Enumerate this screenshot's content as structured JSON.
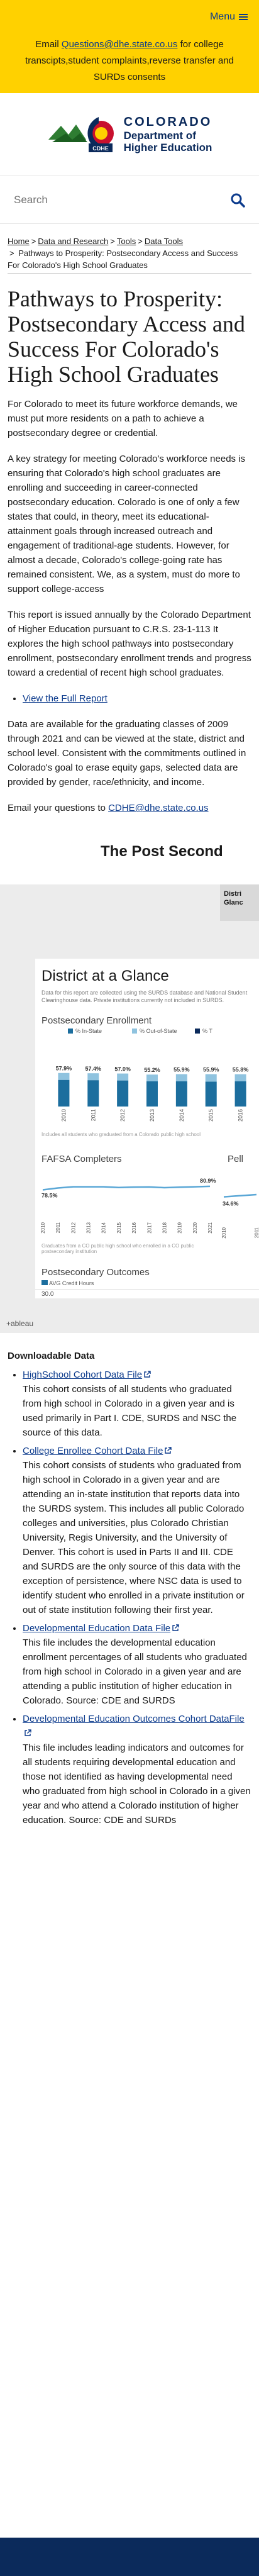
{
  "header": {
    "menu_label": "Menu",
    "banner_prefix": "Email ",
    "banner_email": "Questions@dhe.state.co.us",
    "banner_suffix": " for college transcipts,student complaints,reverse transfer and SURDs consents"
  },
  "logo": {
    "state": "COLORADO",
    "department": "Department of",
    "department2": "Higher Education",
    "badge": "CDHE"
  },
  "search": {
    "placeholder": "Search"
  },
  "breadcrumb": {
    "items": [
      "Home",
      "Data and Research",
      "Tools",
      "Data Tools"
    ],
    "current": "Pathways to Prosperity: Postsecondary Access and Success For Colorado's High School Graduates"
  },
  "main": {
    "title": "Pathways to Prosperity: Postsecondary Access and Success For Colorado's High School Graduates",
    "p1": "For Colorado to meet its future workforce demands, we must put more residents on a path to achieve a postsecondary degree or credential.",
    "p2": "A key strategy for meeting Colorado's workforce needs is ensuring that Colorado's high school graduates are enrolling and succeeding in career-connected postsecondary education. Colorado is one of only a few states that could, in theory, meet its educational-attainment goals through increased outreach and engagement of traditional-age students. However, for almost a decade, Colorado's college-going rate has remained consistent. We, as a system, must do more to support college-access",
    "p3": "This report is issued annually by the Colorado Department of Higher Education pursuant to C.R.S. 23-1-113 It explores the high school pathways into postsecondary enrollment, postsecondary enrollment trends and progress toward a credential of recent high school graduates.",
    "full_report_link": "View the Full Report",
    "p4": "Data are available for the graduating classes of 2009 through 2021 and can be viewed at the state, district and school level. Consistent with the commitments outlined in Colorado's goal to erase equity gaps, selected data are provided by gender, race/ethnicity, and income.",
    "p5_prefix": "Email your questions to ",
    "p5_email": "CDHE@dhe.state.co.us"
  },
  "dashboard": {
    "header": "The Post Second",
    "side_button": "Distri Glanc",
    "glance_title": "District at a Glance",
    "glance_note": "Data for this report are collected using the SURDS database and National Student Clearinghouse data. Private institutions currently not included in SURDS.",
    "enrollment_title": "Postsecondary Enrollment",
    "enrollment_footnote": "Includes all students who graduated from a Colorado public high school",
    "fafsa_title": "FAFSA Completers",
    "fafsa_footnote": "Graduates from a CO public high school who enrolled in a CO public postsecondary institution",
    "pell_title": "Pell",
    "outcomes_title": "Postsecondary Outcomes",
    "outcomes_legend": "AVG Credit Hours",
    "outcomes_tick": "30.0",
    "tableau_label": "+ableau"
  },
  "chart_data": [
    {
      "type": "bar",
      "title": "Postsecondary Enrollment",
      "categories": [
        "2010",
        "2011",
        "2012",
        "2013",
        "2014",
        "2015",
        "2016"
      ],
      "series": [
        {
          "name": "% In-State",
          "values": [
            46.0,
            45.5,
            45.0,
            43.5,
            43.5,
            43.0,
            43.5
          ]
        },
        {
          "name": "% Out-of-State",
          "values": [
            11.9,
            11.9,
            12.0,
            11.7,
            12.4,
            12.9,
            12.3
          ]
        }
      ],
      "totals": [
        57.9,
        57.4,
        57.0,
        55.2,
        55.9,
        55.9,
        55.8
      ],
      "total_labels": [
        "57.9%",
        "57.4%",
        "57.0%",
        "55.2%",
        "55.9%",
        "55.9%",
        "55.8%"
      ],
      "legend_entries": [
        "% In-State",
        "% Out-of-State",
        "% T"
      ],
      "ylim": [
        0,
        100
      ],
      "colors": {
        "in_state": "#1c6e9e",
        "out_state": "#8fc3df"
      }
    },
    {
      "type": "line",
      "title": "FAFSA Completers",
      "x": [
        "2010",
        "2011",
        "2012",
        "2013",
        "2014",
        "2015",
        "2016",
        "2017",
        "2018",
        "2019",
        "2020",
        "2021"
      ],
      "values": [
        78.5,
        79.8,
        80.6,
        80.6,
        80.6,
        80.1,
        80.4,
        80.5,
        80.0,
        80.3,
        80.6,
        80.9
      ],
      "first_label": "78.5%",
      "last_label": "80.9%",
      "color": "#5aa7d6"
    },
    {
      "type": "line",
      "title": "Pell",
      "x": [
        "2010",
        "2011"
      ],
      "values": [
        34.6,
        35.5
      ],
      "first_label": "34.6%",
      "color": "#5aa7d6"
    }
  ],
  "downloads": {
    "heading": "Downloadable Data",
    "items": [
      {
        "link": "HighSchool Cohort Data File",
        "desc": "This cohort consists of all students who graduated from high school in Colorado in a given year and is used primarily in Part I. CDE, SURDS and NSC the source of this data."
      },
      {
        "link": "College Enrollee Cohort Data File",
        "desc": "This cohort consists of students who graduated from high school in Colorado in a given year and are attending an in-state institution that reports data into the SURDS system. This includes all public Colorado colleges and universities, plus Colorado Christian University, Regis University, and the University of Denver. This cohort is used in Parts II and III. CDE and SURDS are the only source of this data with the exception of persistence, where NSC data is used to identify student who enrolled in a private institution or out of state institution following their first year."
      },
      {
        "link": "Developmental Education Data File",
        "desc": "This file includes the developmental education enrollment percentages of all students who graduated from high school in Colorado in a given year and are attending a public institution of higher education in Colorado. Source: CDE and SURDS"
      },
      {
        "link": "Developmental Education Outcomes Cohort DataFile",
        "desc": "This file includes leading indicators and outcomes for all students requiring developmental education and those not identified as having developmental need who graduated from high school in Colorado in a given year and who attend a Colorado institution of higher education. Source: CDE and SURDs"
      }
    ]
  }
}
